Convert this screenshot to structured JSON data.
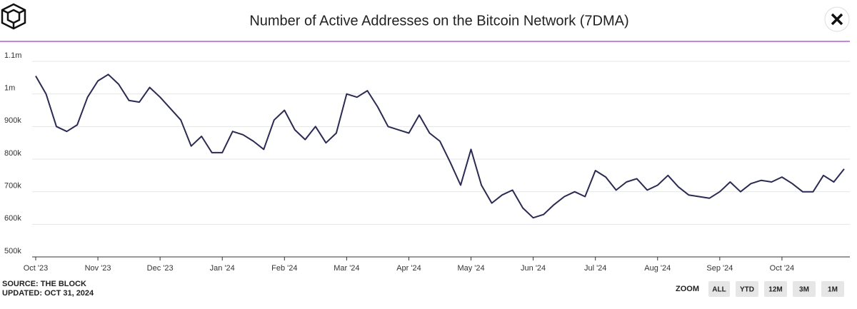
{
  "chart_data": {
    "type": "line",
    "title": "Number of Active Addresses on the Bitcoin Network (7DMA)",
    "categories": [
      "Oct '23",
      null,
      null,
      null,
      null,
      null,
      "Nov '23",
      null,
      null,
      null,
      null,
      null,
      "Dec '23",
      null,
      null,
      null,
      null,
      null,
      "Jan '24",
      null,
      null,
      null,
      null,
      null,
      "Feb '24",
      null,
      null,
      null,
      null,
      null,
      "Mar '24",
      null,
      null,
      null,
      null,
      null,
      "Apr '24",
      null,
      null,
      null,
      null,
      null,
      "May '24",
      null,
      null,
      null,
      null,
      null,
      "Jun '24",
      null,
      null,
      null,
      null,
      null,
      "Jul '24",
      null,
      null,
      null,
      null,
      null,
      "Aug '24",
      null,
      null,
      null,
      null,
      null,
      "Sep '24",
      null,
      null,
      null,
      null,
      null,
      "Oct '24",
      null,
      null,
      null,
      null,
      null,
      null
    ],
    "values": [
      1055000,
      1000000,
      900000,
      885000,
      905000,
      990000,
      1040000,
      1060000,
      1030000,
      980000,
      975000,
      1020000,
      990000,
      955000,
      920000,
      840000,
      870000,
      820000,
      820000,
      885000,
      875000,
      855000,
      830000,
      920000,
      950000,
      890000,
      860000,
      900000,
      850000,
      880000,
      1000000,
      990000,
      1010000,
      960000,
      900000,
      890000,
      880000,
      935000,
      880000,
      855000,
      790000,
      720000,
      830000,
      720000,
      665000,
      690000,
      705000,
      650000,
      620000,
      630000,
      660000,
      685000,
      700000,
      685000,
      765000,
      745000,
      705000,
      730000,
      740000,
      705000,
      720000,
      750000,
      715000,
      690000,
      685000,
      680000,
      700000,
      730000,
      700000,
      725000,
      735000,
      730000,
      745000,
      725000,
      700000,
      700000,
      750000,
      730000,
      770000
    ],
    "color": "#2b2a52",
    "ylim": [
      500000,
      1100000
    ],
    "yticks": [
      {
        "value": 500000,
        "label": "500k"
      },
      {
        "value": 600000,
        "label": "600k"
      },
      {
        "value": 700000,
        "label": "700k"
      },
      {
        "value": 800000,
        "label": "800k"
      },
      {
        "value": 900000,
        "label": "900k"
      },
      {
        "value": 1000000,
        "label": "1m"
      },
      {
        "value": 1100000,
        "label": "1.1m"
      }
    ],
    "grid": true
  },
  "footer": {
    "source": "SOURCE: THE BLOCK",
    "updated": "UPDATED: OCT 31, 2024"
  },
  "zoom": {
    "label": "ZOOM",
    "buttons": [
      "ALL",
      "YTD",
      "12M",
      "3M",
      "1M"
    ]
  }
}
